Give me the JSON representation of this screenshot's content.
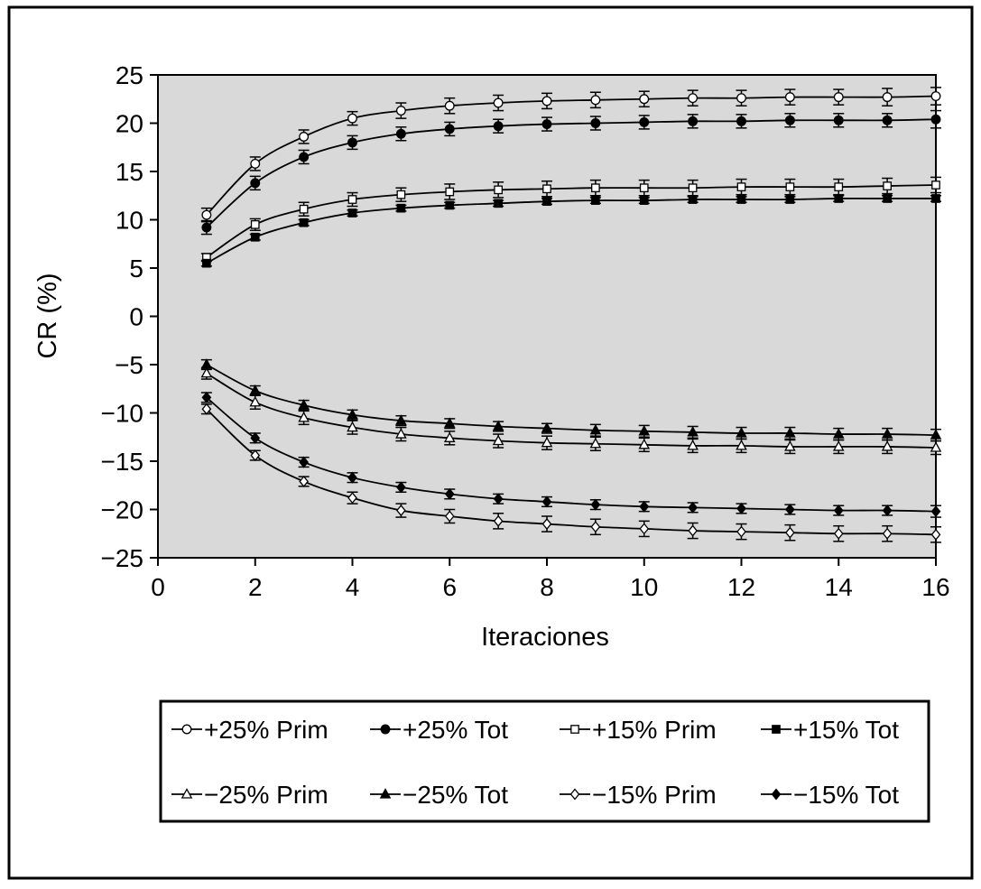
{
  "chart_data": {
    "type": "line",
    "xlabel": "Iteraciones",
    "ylabel": "CR (%)",
    "xlim": [
      0,
      16
    ],
    "ylim": [
      -25,
      25
    ],
    "x_ticks": [
      "0",
      "2",
      "4",
      "6",
      "8",
      "10",
      "12",
      "14",
      "16"
    ],
    "y_ticks": [
      "25",
      "20",
      "15",
      "10",
      "5",
      "0",
      "−5",
      "−10",
      "−15",
      "−20",
      "−25"
    ],
    "x": [
      1,
      2,
      3,
      4,
      5,
      6,
      7,
      8,
      9,
      10,
      11,
      12,
      13,
      14,
      15,
      16
    ],
    "grid": false,
    "background": "#d9d9d9",
    "error_bars": true,
    "legend_position": "bottom",
    "legend_row1": [
      "+25% Prim",
      "+25% Tot",
      "+15% Prim",
      "+15% Tot"
    ],
    "legend_row2": [
      "−25% Prim",
      "−25% Tot",
      "−15% Prim",
      "−15% Tot"
    ],
    "series": [
      {
        "name": "+25% Prim",
        "marker": "circle-open",
        "values": [
          10.5,
          15.8,
          18.6,
          20.5,
          21.3,
          21.8,
          22.1,
          22.3,
          22.4,
          22.5,
          22.6,
          22.6,
          22.7,
          22.7,
          22.7,
          22.8
        ],
        "err": [
          0.7,
          0.7,
          0.7,
          0.7,
          0.8,
          0.8,
          0.8,
          0.8,
          0.8,
          0.8,
          0.8,
          0.8,
          0.8,
          0.8,
          0.9,
          0.9
        ]
      },
      {
        "name": "+25% Tot",
        "marker": "circle-filled",
        "values": [
          9.2,
          13.8,
          16.5,
          18.0,
          18.9,
          19.4,
          19.7,
          19.9,
          20.0,
          20.1,
          20.2,
          20.2,
          20.3,
          20.3,
          20.3,
          20.4
        ],
        "err": [
          0.7,
          0.7,
          0.7,
          0.7,
          0.7,
          0.7,
          0.7,
          0.7,
          0.7,
          0.7,
          0.7,
          0.7,
          0.7,
          0.7,
          0.7,
          0.9
        ]
      },
      {
        "name": "+15% Prim",
        "marker": "square-open",
        "values": [
          6.1,
          9.5,
          11.1,
          12.1,
          12.6,
          12.9,
          13.1,
          13.2,
          13.3,
          13.3,
          13.3,
          13.4,
          13.4,
          13.4,
          13.5,
          13.6
        ],
        "err": [
          0.4,
          0.6,
          0.7,
          0.7,
          0.7,
          0.8,
          0.8,
          0.8,
          0.8,
          0.8,
          0.8,
          0.8,
          0.8,
          0.8,
          0.8,
          0.8
        ]
      },
      {
        "name": "+15% Tot",
        "marker": "square-filled",
        "values": [
          5.5,
          8.2,
          9.7,
          10.7,
          11.2,
          11.5,
          11.7,
          11.9,
          12.0,
          12.0,
          12.1,
          12.1,
          12.1,
          12.2,
          12.2,
          12.2
        ],
        "err": [
          0.3,
          0.3,
          0.3,
          0.3,
          0.3,
          0.3,
          0.3,
          0.3,
          0.3,
          0.3,
          0.3,
          0.3,
          0.3,
          0.3,
          0.3,
          0.3
        ]
      },
      {
        "name": "−25% Prim",
        "marker": "triangle-open",
        "values": [
          -5.9,
          -8.9,
          -10.5,
          -11.5,
          -12.2,
          -12.6,
          -12.9,
          -13.1,
          -13.2,
          -13.3,
          -13.4,
          -13.4,
          -13.5,
          -13.5,
          -13.5,
          -13.6
        ],
        "err": [
          0.6,
          0.7,
          0.7,
          0.7,
          0.7,
          0.7,
          0.7,
          0.7,
          0.7,
          0.7,
          0.7,
          0.7,
          0.7,
          0.7,
          0.7,
          0.7
        ]
      },
      {
        "name": "−25% Tot",
        "marker": "triangle-filled",
        "values": [
          -5.0,
          -7.7,
          -9.2,
          -10.2,
          -10.8,
          -11.1,
          -11.4,
          -11.6,
          -11.8,
          -11.9,
          -12.0,
          -12.1,
          -12.1,
          -12.2,
          -12.2,
          -12.3
        ],
        "err": [
          0.5,
          0.5,
          0.5,
          0.5,
          0.5,
          0.5,
          0.5,
          0.5,
          0.6,
          0.6,
          0.6,
          0.6,
          0.6,
          0.6,
          0.6,
          0.6
        ]
      },
      {
        "name": "−15% Prim",
        "marker": "diamond-open",
        "values": [
          -9.6,
          -14.4,
          -17.1,
          -18.8,
          -20.1,
          -20.7,
          -21.2,
          -21.5,
          -21.8,
          -22.0,
          -22.2,
          -22.3,
          -22.4,
          -22.5,
          -22.5,
          -22.6
        ],
        "err": [
          0.5,
          0.5,
          0.5,
          0.6,
          0.7,
          0.7,
          0.8,
          0.8,
          0.8,
          0.8,
          0.8,
          0.8,
          0.8,
          0.8,
          0.8,
          0.8
        ]
      },
      {
        "name": "−15% Tot",
        "marker": "diamond-filled",
        "values": [
          -8.4,
          -12.6,
          -15.1,
          -16.7,
          -17.7,
          -18.4,
          -18.9,
          -19.2,
          -19.5,
          -19.7,
          -19.8,
          -19.9,
          -20.0,
          -20.1,
          -20.1,
          -20.2
        ],
        "err": [
          0.5,
          0.5,
          0.5,
          0.5,
          0.5,
          0.5,
          0.5,
          0.5,
          0.5,
          0.5,
          0.5,
          0.5,
          0.5,
          0.5,
          0.5,
          0.6
        ]
      }
    ]
  }
}
